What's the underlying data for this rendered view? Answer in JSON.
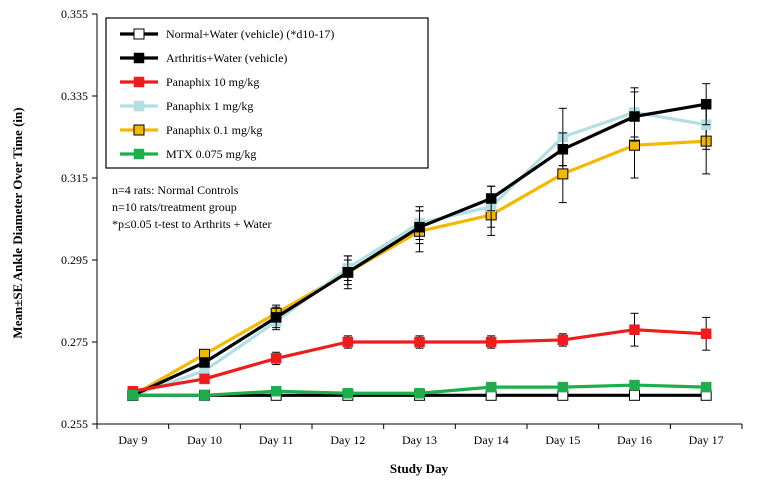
{
  "chart_data": {
    "type": "line",
    "xlabel": "Study Day",
    "ylabel": "Mean±SE Ankle Diameter Over Time (in)",
    "categories": [
      "Day 9",
      "Day 10",
      "Day 11",
      "Day 12",
      "Day 13",
      "Day 14",
      "Day 15",
      "Day 16",
      "Day 17"
    ],
    "ylim": [
      0.255,
      0.355
    ],
    "yticks": [
      "0.255",
      "0.275",
      "0.295",
      "0.315",
      "0.335",
      "0.355"
    ],
    "yticks_values": [
      0.255,
      0.275,
      0.295,
      0.315,
      0.335,
      0.355
    ],
    "grid": false,
    "legend_position": "top-left",
    "series": [
      {
        "name": "Normal+Water (vehicle) (*d10-17)",
        "color": "#000000",
        "marker_fill": "#ffffff",
        "values": [
          0.262,
          0.262,
          0.262,
          0.262,
          0.262,
          0.262,
          0.262,
          0.262,
          0.262
        ],
        "errors": [
          0,
          0,
          0,
          0,
          0,
          0,
          0,
          0,
          0
        ]
      },
      {
        "name": "Arthritis+Water (vehicle)",
        "color": "#000000",
        "marker_fill": "#000000",
        "values": [
          0.262,
          0.27,
          0.281,
          0.292,
          0.303,
          0.31,
          0.322,
          0.33,
          0.333
        ],
        "errors": [
          0.0005,
          0.001,
          0.0025,
          0.003,
          0.004,
          0.003,
          0.004,
          0.006,
          0.005
        ]
      },
      {
        "name": "Panaphix 10 mg/kg",
        "color": "#ee1c1c",
        "marker_fill": "#ee1c1c",
        "values": [
          0.263,
          0.266,
          0.271,
          0.275,
          0.275,
          0.275,
          0.2755,
          0.278,
          0.277
        ],
        "errors": [
          0.0005,
          0.001,
          0.0015,
          0.0015,
          0.0015,
          0.0015,
          0.0015,
          0.004,
          0.004
        ]
      },
      {
        "name": "Panaphix 1 mg/kg",
        "color": "#b3dee4",
        "marker_fill": "#b3dee4",
        "values": [
          0.262,
          0.268,
          0.28,
          0.293,
          0.304,
          0.308,
          0.325,
          0.331,
          0.328
        ],
        "errors": [
          0.0005,
          0.001,
          0.002,
          0.003,
          0.004,
          0.005,
          0.007,
          0.006,
          0.006
        ]
      },
      {
        "name": "Panaphix 0.1 mg/kg",
        "color": "#f5b800",
        "marker_fill": "#f5b800",
        "values": [
          0.262,
          0.272,
          0.282,
          0.292,
          0.302,
          0.306,
          0.316,
          0.323,
          0.324
        ],
        "errors": [
          0.0005,
          0.001,
          0.002,
          0.004,
          0.005,
          0.005,
          0.007,
          0.008,
          0.008
        ]
      },
      {
        "name": "MTX 0.075 mg/kg",
        "color": "#1fae4b",
        "marker_fill": "#1fae4b",
        "values": [
          0.262,
          0.262,
          0.263,
          0.2625,
          0.2625,
          0.264,
          0.264,
          0.2645,
          0.264
        ],
        "errors": [
          0.0005,
          0.0005,
          0.0005,
          0.0005,
          0.0005,
          0.0005,
          0.0005,
          0.0005,
          0.0005
        ]
      }
    ],
    "annotations": [
      "n=4 rats: Normal Controls",
      "n=10 rats/treatment  group",
      "*p≤0.05 t-test to Arthrits + Water"
    ]
  }
}
